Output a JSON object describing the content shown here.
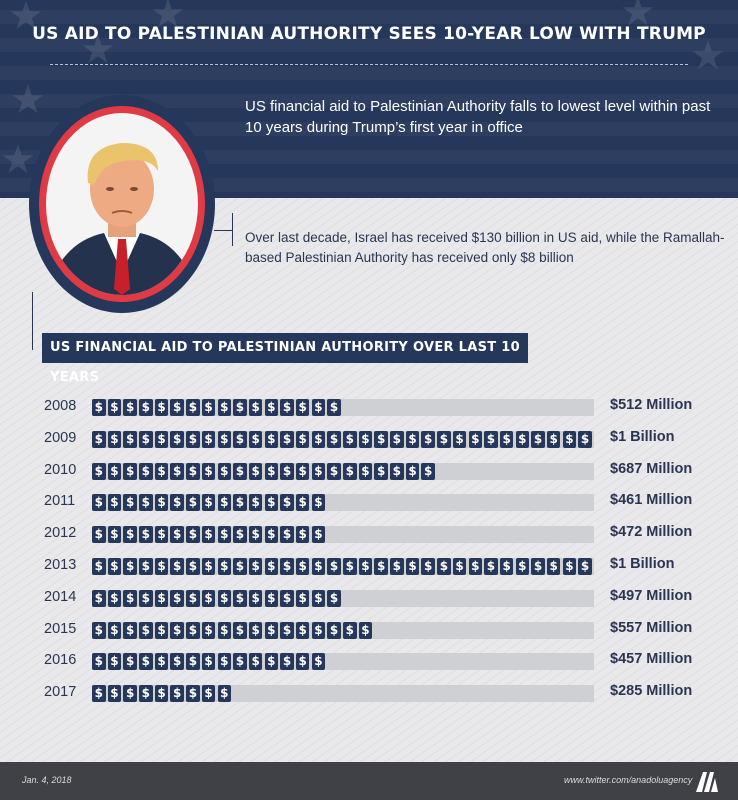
{
  "header": {
    "title": "US AID TO PALESTINIAN AUTHORITY SEES 10-YEAR LOW WITH TRUMP",
    "subtitle": "US financial aid to Palestinian Authority falls to lowest level within past 10 years during Trump’s first year in office"
  },
  "note": "Over last decade, Israel has received $130 billion in US aid, while  the Ramallah-based Palestinian Authority has received only $8 billion",
  "section_title": "US FINANCIAL AID TO PALESTINIAN AUTHORITY OVER LAST 10 YEARS",
  "colors": {
    "navy": "#25375a",
    "accent_red": "#e03b45",
    "track": "#cfd0d4",
    "footer": "#3f4146"
  },
  "chart_data": {
    "type": "bar",
    "orientation": "horizontal",
    "categories": [
      "2008",
      "2009",
      "2010",
      "2011",
      "2012",
      "2013",
      "2014",
      "2015",
      "2016",
      "2017"
    ],
    "values": [
      512,
      1000,
      687,
      461,
      472,
      1000,
      497,
      557,
      457,
      285
    ],
    "value_labels": [
      "$512 Million",
      "$1 Billion",
      "$687 Million",
      "$461 Million",
      "$472 Million",
      "$1 Billion",
      "$497 Million",
      "$557 Million",
      "$457 Million",
      "$285 Million"
    ],
    "max_value": 1000,
    "coin_symbol": "$"
  },
  "footer": {
    "date": "Jan. 4, 2018",
    "twitter": "www.twitter.com/anadoluagency"
  },
  "icons": {
    "portrait": "portrait-photo",
    "logo": "anadolu-agency-logo"
  }
}
